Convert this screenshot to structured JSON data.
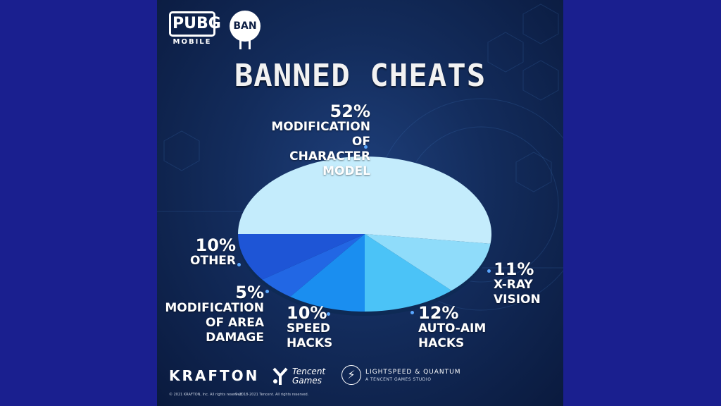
{
  "logos": {
    "pubg_word": "PUBG",
    "pubg_sub": "MOBILE",
    "ban_badge": "BAN"
  },
  "title": "BANNED CHEATS",
  "chart_data": {
    "type": "pie",
    "title": "BANNED CHEATS",
    "slices": [
      {
        "label": "MODIFICATION OF CHARACTER MODEL",
        "pct_label": "52%",
        "value": 52,
        "color": "#c4ecfc"
      },
      {
        "label": "X-RAY VISION",
        "pct_label": "11%",
        "value": 11,
        "color": "#8fdcfa"
      },
      {
        "label": "AUTO-AIM HACKS",
        "pct_label": "12%",
        "value": 12,
        "color": "#4bc3f7"
      },
      {
        "label": "SPEED HACKS",
        "pct_label": "10%",
        "value": 10,
        "color": "#1a8ef0"
      },
      {
        "label": "MODIFICATION OF AREA DAMAGE",
        "pct_label": "5%",
        "value": 5,
        "color": "#2267e4"
      },
      {
        "label": "OTHER",
        "pct_label": "10%",
        "value": 10,
        "color": "#1e55d6"
      }
    ],
    "label_lines": {
      "character": [
        "MODIFICATION OF",
        "CHARACTER MODEL"
      ],
      "xray": [
        "X-RAY",
        "VISION"
      ],
      "autoaim": [
        "AUTO-AIM",
        "HACKS"
      ],
      "speed": [
        "SPEED",
        "HACKS"
      ],
      "area": [
        "MODIFICATION",
        "OF AREA DAMAGE"
      ],
      "other": [
        "OTHER"
      ]
    }
  },
  "footer": {
    "krafton": "KRAFTON",
    "tencent_line1": "Tencent",
    "tencent_line2": "Games",
    "lq": "LIGHTSPEED & QUANTUM",
    "lq_sub": "A TENCENT GAMES STUDIO",
    "copyright_krafton": "© 2021 KRAFTON, Inc. All rights reserved.",
    "copyright_tencent": "© 2018-2021 Tencent. All rights reserved."
  }
}
